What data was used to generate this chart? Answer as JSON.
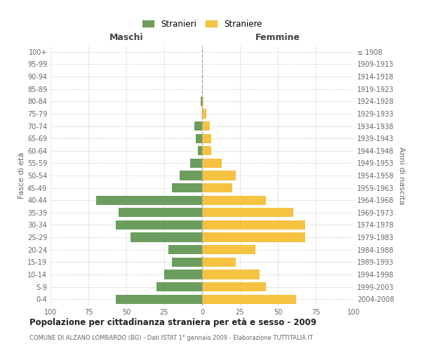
{
  "age_groups": [
    "0-4",
    "5-9",
    "10-14",
    "15-19",
    "20-24",
    "25-29",
    "30-34",
    "35-39",
    "40-44",
    "45-49",
    "50-54",
    "55-59",
    "60-64",
    "65-69",
    "70-74",
    "75-79",
    "80-84",
    "85-89",
    "90-94",
    "95-99",
    "100+"
  ],
  "birth_years": [
    "2004-2008",
    "1999-2003",
    "1994-1998",
    "1989-1993",
    "1984-1988",
    "1979-1983",
    "1974-1978",
    "1969-1973",
    "1964-1968",
    "1959-1963",
    "1954-1958",
    "1949-1953",
    "1944-1948",
    "1939-1943",
    "1934-1938",
    "1929-1933",
    "1924-1928",
    "1919-1923",
    "1914-1918",
    "1909-1913",
    "≤ 1908"
  ],
  "males": [
    57,
    30,
    25,
    20,
    22,
    47,
    57,
    55,
    70,
    20,
    15,
    8,
    3,
    4,
    5,
    0,
    1,
    0,
    0,
    0,
    0
  ],
  "females": [
    62,
    42,
    38,
    22,
    35,
    68,
    68,
    60,
    42,
    20,
    22,
    13,
    6,
    6,
    5,
    3,
    1,
    0,
    0,
    0,
    0
  ],
  "male_color": "#6b9e5e",
  "female_color": "#f5c242",
  "background_color": "#ffffff",
  "grid_color": "#cccccc",
  "title": "Popolazione per cittadinanza straniera per età e sesso - 2009",
  "subtitle": "COMUNE DI ALZANO LOMBARDO (BG) - Dati ISTAT 1° gennaio 2009 - Elaborazione TUTTITALIA.IT",
  "xlabel_left": "Maschi",
  "xlabel_right": "Femmine",
  "ylabel_left": "Fasce di età",
  "ylabel_right": "Anni di nascita",
  "xlim": 100,
  "legend_stranieri": "Stranieri",
  "legend_straniere": "Straniere"
}
